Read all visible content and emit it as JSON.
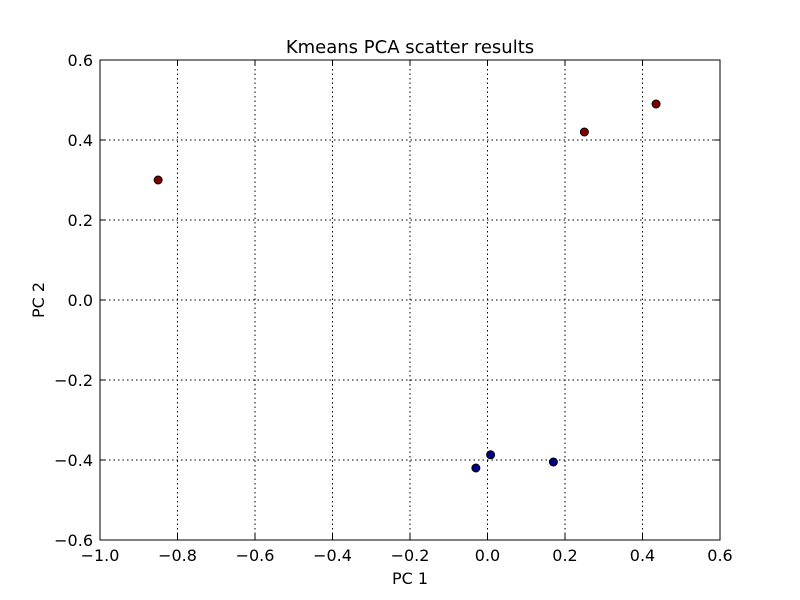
{
  "chart_data": {
    "type": "scatter",
    "title": "Kmeans PCA scatter results",
    "xlabel": "PC 1",
    "ylabel": "PC 2",
    "xlim": [
      -1.0,
      0.6
    ],
    "ylim": [
      -0.6,
      0.6
    ],
    "grid": true,
    "xticks": [
      -1.0,
      -0.8,
      -0.6,
      -0.4,
      -0.2,
      0.0,
      0.2,
      0.4,
      0.6
    ],
    "xtick_labels": [
      "−1.0",
      "−0.8",
      "−0.6",
      "−0.4",
      "−0.2",
      "0.0",
      "0.2",
      "0.4",
      "0.6"
    ],
    "yticks": [
      -0.6,
      -0.4,
      -0.2,
      0.0,
      0.2,
      0.4,
      0.6
    ],
    "ytick_labels": [
      "−0.6",
      "−0.4",
      "−0.2",
      "0.0",
      "0.2",
      "0.4",
      "0.6"
    ],
    "series": [
      {
        "color": "#800000",
        "x": [
          -0.85,
          0.25,
          0.435
        ],
        "y": [
          0.3,
          0.42,
          0.49
        ]
      },
      {
        "color": "#000080",
        "x": [
          -0.03,
          0.008,
          0.17
        ],
        "y": [
          -0.42,
          -0.387,
          -0.405
        ]
      }
    ]
  }
}
